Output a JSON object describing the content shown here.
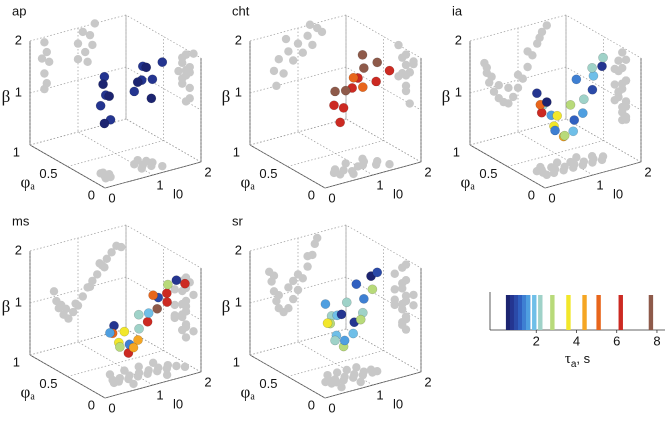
{
  "chart_data": [
    {
      "type": "scatter3d",
      "title": "ap",
      "xlabel": "l0",
      "ylabel": {
        "symbol": "φ",
        "sub": "a"
      },
      "zlabel": "β",
      "xlim": [
        0,
        2
      ],
      "ylim": [
        0,
        1
      ],
      "zlim": [
        0,
        2
      ],
      "xticks": [
        0,
        1,
        2
      ],
      "yticks": [
        0,
        0.5,
        1
      ],
      "zticks": [
        1,
        2
      ],
      "shadow_color": "#c8c8c8",
      "points": [
        [
          0.3,
          0.2,
          1.9,
          0.8
        ],
        [
          0.35,
          0.25,
          1.7,
          0.6
        ],
        [
          0.25,
          0.15,
          1.6,
          0.8
        ],
        [
          0.4,
          0.2,
          1.5,
          0.6
        ],
        [
          0.3,
          0.25,
          1.3,
          0.8
        ],
        [
          0.35,
          0.15,
          1.1,
          0.8
        ],
        [
          0.3,
          0.2,
          1.0,
          0.6
        ],
        [
          1.1,
          0.2,
          1.9,
          0.8
        ],
        [
          1.25,
          0.25,
          1.8,
          0.6
        ],
        [
          1.0,
          0.15,
          1.7,
          0.8
        ],
        [
          1.3,
          0.2,
          1.6,
          0.8
        ],
        [
          1.15,
          0.3,
          1.5,
          0.6
        ],
        [
          1.0,
          0.25,
          1.4,
          0.8
        ],
        [
          1.2,
          0.15,
          1.3,
          0.6
        ],
        [
          1.35,
          0.1,
          2.0,
          0.8
        ]
      ]
    },
    {
      "type": "scatter3d",
      "title": "cht",
      "xlabel": "l0",
      "ylabel": {
        "symbol": "φ",
        "sub": "a"
      },
      "zlabel": "β",
      "xlim": [
        0,
        2
      ],
      "ylim": [
        0,
        1
      ],
      "zlim": [
        0,
        2
      ],
      "xticks": [
        0,
        1,
        2
      ],
      "yticks": [
        0,
        0.5,
        1
      ],
      "zticks": [
        1,
        2
      ],
      "shadow_color": "#c8c8c8",
      "points": [
        [
          0.5,
          0.2,
          1.3,
          6.2
        ],
        [
          0.6,
          0.25,
          1.5,
          7.7
        ],
        [
          0.7,
          0.2,
          1.2,
          6.2
        ],
        [
          0.8,
          0.15,
          1.6,
          6.2
        ],
        [
          0.9,
          0.3,
          1.4,
          7.7
        ],
        [
          1.0,
          0.2,
          1.7,
          6.2
        ],
        [
          1.1,
          0.2,
          1.5,
          5.1
        ],
        [
          1.2,
          0.25,
          1.8,
          7.7
        ],
        [
          1.3,
          0.15,
          1.6,
          6.2
        ],
        [
          1.4,
          0.2,
          1.9,
          7.7
        ],
        [
          1.5,
          0.1,
          1.8,
          6.2
        ],
        [
          0.55,
          0.15,
          1.0,
          6.2
        ],
        [
          1.25,
          0.3,
          2.0,
          7.7
        ],
        [
          0.75,
          0.1,
          1.85,
          5.1
        ]
      ]
    },
    {
      "type": "scatter3d",
      "title": "ia",
      "xlabel": "l0",
      "ylabel": {
        "symbol": "φ",
        "sub": "a"
      },
      "zlabel": "β",
      "xlim": [
        0,
        2
      ],
      "ylim": [
        0,
        1
      ],
      "zlim": [
        0,
        2
      ],
      "xticks": [
        0,
        1,
        2
      ],
      "yticks": [
        0,
        0.5,
        1
      ],
      "zticks": [
        1,
        2
      ],
      "shadow_color": "#c8c8c8",
      "points": [
        [
          0.3,
          0.3,
          1.5,
          0.8
        ],
        [
          0.35,
          0.25,
          1.3,
          2.2
        ],
        [
          0.4,
          0.3,
          1.1,
          6.2
        ],
        [
          0.5,
          0.2,
          0.9,
          3.6
        ],
        [
          0.6,
          0.25,
          0.75,
          1.4
        ],
        [
          0.7,
          0.2,
          0.65,
          4.4
        ],
        [
          0.8,
          0.25,
          0.6,
          2.8
        ],
        [
          0.9,
          0.2,
          0.7,
          1.9
        ],
        [
          1.0,
          0.25,
          0.85,
          1.2
        ],
        [
          1.1,
          0.2,
          1.0,
          1.6
        ],
        [
          1.2,
          0.25,
          1.2,
          2.2
        ],
        [
          1.3,
          0.2,
          1.4,
          1.0
        ],
        [
          1.4,
          0.25,
          1.6,
          1.9
        ],
        [
          1.5,
          0.2,
          1.8,
          0.8
        ],
        [
          1.6,
          0.25,
          1.9,
          2.2
        ],
        [
          0.45,
          0.35,
          1.2,
          5.1
        ],
        [
          0.6,
          0.3,
          1.0,
          1.6
        ],
        [
          0.8,
          0.35,
          0.9,
          3.6
        ],
        [
          1.0,
          0.3,
          1.1,
          2.8
        ],
        [
          1.2,
          0.35,
          1.5,
          1.4
        ],
        [
          0.35,
          0.2,
          1.4,
          0.6
        ],
        [
          1.45,
          0.3,
          1.7,
          2.2
        ]
      ]
    },
    {
      "type": "scatter3d",
      "title": "ms",
      "xlabel": "l0",
      "ylabel": {
        "symbol": "φ",
        "sub": "a"
      },
      "zlabel": "β",
      "xlim": [
        0,
        2
      ],
      "ylim": [
        0,
        1
      ],
      "zlim": [
        0,
        2
      ],
      "xticks": [
        0,
        1,
        2
      ],
      "yticks": [
        0,
        0.5,
        1
      ],
      "zticks": [
        1,
        2
      ],
      "shadow_color": "#c8c8c8",
      "points": [
        [
          0.5,
          0.2,
          1.1,
          0.8
        ],
        [
          0.55,
          0.25,
          0.9,
          5.1
        ],
        [
          0.6,
          0.2,
          0.75,
          3.6
        ],
        [
          0.7,
          0.25,
          0.6,
          2.8
        ],
        [
          0.8,
          0.2,
          0.5,
          6.2
        ],
        [
          0.9,
          0.25,
          0.6,
          1.4
        ],
        [
          1.0,
          0.2,
          0.7,
          4.4
        ],
        [
          1.1,
          0.25,
          0.85,
          2.2
        ],
        [
          1.2,
          0.2,
          1.0,
          6.2
        ],
        [
          1.3,
          0.25,
          1.1,
          1.9
        ],
        [
          1.4,
          0.2,
          1.2,
          7.7
        ],
        [
          1.5,
          0.25,
          1.35,
          1.0
        ],
        [
          1.6,
          0.2,
          1.45,
          6.2
        ],
        [
          1.7,
          0.25,
          1.55,
          2.8
        ],
        [
          1.8,
          0.2,
          1.65,
          0.8
        ],
        [
          1.9,
          0.15,
          1.6,
          6.2
        ],
        [
          0.65,
          0.35,
          0.8,
          1.6
        ],
        [
          0.95,
          0.35,
          0.75,
          3.6
        ],
        [
          1.25,
          0.35,
          1.0,
          2.2
        ],
        [
          1.55,
          0.35,
          1.3,
          5.1
        ],
        [
          0.75,
          0.1,
          0.7,
          4.4
        ],
        [
          1.45,
          0.1,
          1.4,
          6.2
        ]
      ]
    },
    {
      "type": "scatter3d",
      "title": "sr",
      "xlabel": "l0",
      "ylabel": {
        "symbol": "φ",
        "sub": "a"
      },
      "zlabel": "β",
      "xlim": [
        0,
        2
      ],
      "ylim": [
        0,
        1
      ],
      "zlim": [
        0,
        2
      ],
      "xticks": [
        0,
        1,
        2
      ],
      "yticks": [
        0,
        0.5,
        1
      ],
      "zticks": [
        1,
        2
      ],
      "shadow_color": "#c8c8c8",
      "points": [
        [
          0.4,
          0.25,
          1.5,
          1.6
        ],
        [
          0.45,
          0.2,
          1.3,
          2.2
        ],
        [
          0.5,
          0.25,
          1.1,
          2.8
        ],
        [
          0.55,
          0.2,
          0.9,
          1.9
        ],
        [
          0.6,
          0.25,
          0.75,
          2.2
        ],
        [
          0.7,
          0.2,
          0.65,
          2.8
        ],
        [
          0.8,
          0.25,
          0.7,
          1.6
        ],
        [
          0.9,
          0.2,
          0.85,
          1.9
        ],
        [
          1.0,
          0.25,
          1.0,
          0.8
        ],
        [
          1.1,
          0.2,
          1.2,
          2.2
        ],
        [
          1.2,
          0.25,
          1.4,
          1.4
        ],
        [
          1.3,
          0.2,
          1.6,
          2.8
        ],
        [
          1.35,
          0.25,
          1.8,
          0.6
        ],
        [
          1.4,
          0.2,
          1.9,
          1.0
        ],
        [
          0.6,
          0.35,
          1.0,
          3.6
        ],
        [
          0.8,
          0.35,
          1.1,
          1.9
        ],
        [
          1.0,
          0.35,
          1.3,
          2.2
        ],
        [
          1.2,
          0.35,
          1.6,
          1.2
        ],
        [
          0.5,
          0.1,
          1.4,
          0.8
        ],
        [
          0.9,
          0.1,
          1.2,
          2.8
        ]
      ]
    },
    {
      "type": "colorbar",
      "xlabel": {
        "symbol": "τ",
        "sub": "a",
        "unit": ", s"
      },
      "xlim": [
        -0.3,
        8.4
      ],
      "xticks": [
        2,
        4,
        6,
        8
      ],
      "taus": [
        0.6,
        0.8,
        1.0,
        1.2,
        1.4,
        1.6,
        1.9,
        2.2,
        2.8,
        3.6,
        4.4,
        5.1,
        6.2,
        7.7
      ],
      "colors": [
        "#1c2470",
        "#243590",
        "#2b4aa8",
        "#3060c0",
        "#3e7fd2",
        "#4f9fe0",
        "#6fbfe8",
        "#9fd2c8",
        "#b8da7a",
        "#f2e72a",
        "#f5a623",
        "#e8661c",
        "#cc2a22",
        "#8e5a4a"
      ]
    }
  ]
}
